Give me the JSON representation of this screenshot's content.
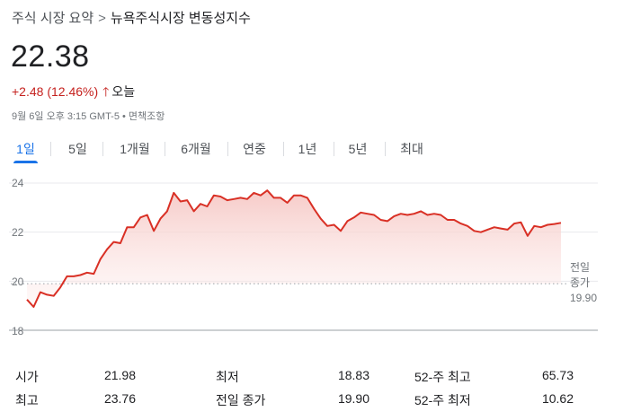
{
  "breadcrumb": {
    "root": "주식 시장 요약",
    "separator": ">",
    "current": "뉴욕주식시장 변동성지수"
  },
  "quote": {
    "price": "22.38",
    "change": "+2.48 (12.46%)",
    "arrow": "🡑",
    "period": "오늘",
    "timestamp": "9월 6일 오후 3:15 GMT-5 • 면책조항"
  },
  "tabs": [
    {
      "label": "1일",
      "active": true
    },
    {
      "label": "5일",
      "active": false
    },
    {
      "label": "1개월",
      "active": false
    },
    {
      "label": "6개월",
      "active": false
    },
    {
      "label": "연중",
      "active": false
    },
    {
      "label": "1년",
      "active": false
    },
    {
      "label": "5년",
      "active": false
    },
    {
      "label": "최대",
      "active": false
    }
  ],
  "chart_data": {
    "type": "area",
    "ylim": [
      18,
      24
    ],
    "yticks": [
      "24",
      "22",
      "20",
      "18"
    ],
    "line_color": "#d93025",
    "reference_line": {
      "label": "전일\n종가",
      "value_label": "19.90",
      "value": 19.9
    },
    "series": [
      {
        "values": [
          19.25,
          18.95,
          19.55,
          19.45,
          19.4,
          19.75,
          20.2,
          20.2,
          20.25,
          20.35,
          20.3,
          20.9,
          21.3,
          21.6,
          21.55,
          22.2,
          22.2,
          22.6,
          22.7,
          22.05,
          22.55,
          22.85,
          23.6,
          23.25,
          23.3,
          22.85,
          23.15,
          23.05,
          23.5,
          23.45,
          23.3,
          23.35,
          23.4,
          23.35,
          23.6,
          23.5,
          23.7,
          23.4,
          23.4,
          23.2,
          23.5,
          23.5,
          23.4,
          22.95,
          22.55,
          22.25,
          22.3,
          22.05,
          22.45,
          22.6,
          22.8,
          22.75,
          22.7,
          22.5,
          22.45,
          22.65,
          22.75,
          22.7,
          22.75,
          22.85,
          22.7,
          22.75,
          22.7,
          22.5,
          22.5,
          22.35,
          22.25,
          22.05,
          22.0,
          22.1,
          22.2,
          22.15,
          22.1,
          22.35,
          22.4,
          21.85,
          22.25,
          22.2,
          22.3,
          22.33,
          22.38
        ]
      }
    ]
  },
  "stats": [
    {
      "label": "시가",
      "value": "21.98"
    },
    {
      "label": "최저",
      "value": "18.83"
    },
    {
      "label": "52-주 최고",
      "value": "65.73"
    },
    {
      "label": "최고",
      "value": "23.76"
    },
    {
      "label": "전일 종가",
      "value": "19.90"
    },
    {
      "label": "52-주 최저",
      "value": "10.62"
    }
  ]
}
